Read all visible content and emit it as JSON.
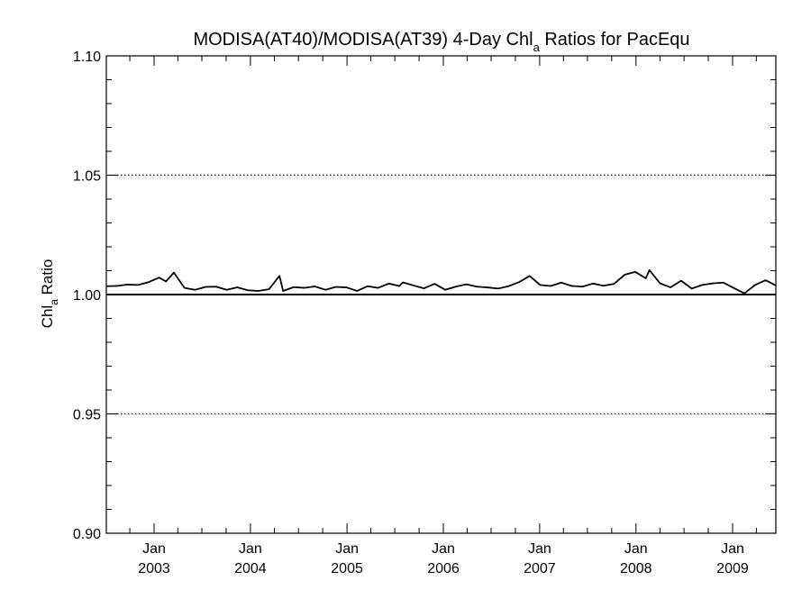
{
  "chart_data": {
    "type": "line",
    "title": {
      "main": "MODISA(AT40)/MODISA(AT39) 4-Day Chl",
      "sub": "a",
      "rest": " Ratios for PacEqu"
    },
    "ylabel": {
      "main": "Chl",
      "sub": "a",
      "rest": " Ratio"
    },
    "xlim": [
      "2002-07-04",
      "2009-06-14"
    ],
    "ylim": [
      0.9,
      1.1
    ],
    "y_ticks": [
      "0.90",
      "0.95",
      "1.00",
      "1.05",
      "1.10"
    ],
    "x_ticks": [
      {
        "month": "Jan",
        "year": "2003",
        "date": "2003-01-01"
      },
      {
        "month": "Jan",
        "year": "2004",
        "date": "2004-01-01"
      },
      {
        "month": "Jan",
        "year": "2005",
        "date": "2005-01-01"
      },
      {
        "month": "Jan",
        "year": "2006",
        "date": "2006-01-01"
      },
      {
        "month": "Jan",
        "year": "2007",
        "date": "2007-01-01"
      },
      {
        "month": "Jan",
        "year": "2008",
        "date": "2008-01-01"
      },
      {
        "month": "Jan",
        "year": "2009",
        "date": "2009-01-01"
      }
    ],
    "grid": "dotted horizontal at major y ticks",
    "reference_line": 1.0,
    "series": [
      {
        "values": [
          [
            "2002-07-04",
            1.0035
          ],
          [
            "2002-08-13",
            1.0036
          ],
          [
            "2002-09-22",
            1.0042
          ],
          [
            "2002-11-01",
            1.004
          ],
          [
            "2002-12-11",
            1.0052
          ],
          [
            "2003-01-20",
            1.0071
          ],
          [
            "2003-02-15",
            1.0055
          ],
          [
            "2003-03-17",
            1.0092
          ],
          [
            "2003-04-26",
            1.0028
          ],
          [
            "2003-06-05",
            1.002
          ],
          [
            "2003-07-15",
            1.0032
          ],
          [
            "2003-08-24",
            1.0033
          ],
          [
            "2003-10-03",
            1.002
          ],
          [
            "2003-11-12",
            1.003
          ],
          [
            "2003-12-22",
            1.0018
          ],
          [
            "2004-01-31",
            1.0015
          ],
          [
            "2004-03-11",
            1.0022
          ],
          [
            "2004-04-20",
            1.0078
          ],
          [
            "2004-05-04",
            1.0015
          ],
          [
            "2004-06-13",
            1.0031
          ],
          [
            "2004-07-23",
            1.0028
          ],
          [
            "2004-09-01",
            1.0034
          ],
          [
            "2004-10-11",
            1.002
          ],
          [
            "2004-11-20",
            1.0032
          ],
          [
            "2004-12-30",
            1.003
          ],
          [
            "2005-02-08",
            1.0015
          ],
          [
            "2005-03-20",
            1.0035
          ],
          [
            "2005-04-29",
            1.0028
          ],
          [
            "2005-06-08",
            1.0046
          ],
          [
            "2005-07-18",
            1.0036
          ],
          [
            "2005-08-01",
            1.0051
          ],
          [
            "2005-09-10",
            1.0038
          ],
          [
            "2005-10-20",
            1.0026
          ],
          [
            "2005-11-29",
            1.0045
          ],
          [
            "2006-01-08",
            1.002
          ],
          [
            "2006-02-17",
            1.0033
          ],
          [
            "2006-03-29",
            1.0043
          ],
          [
            "2006-05-08",
            1.0033
          ],
          [
            "2006-06-17",
            1.003
          ],
          [
            "2006-07-27",
            1.0025
          ],
          [
            "2006-09-05",
            1.0035
          ],
          [
            "2006-10-15",
            1.0052
          ],
          [
            "2006-11-24",
            1.0078
          ],
          [
            "2007-01-03",
            1.004
          ],
          [
            "2007-02-12",
            1.0036
          ],
          [
            "2007-03-24",
            1.005
          ],
          [
            "2007-05-03",
            1.0036
          ],
          [
            "2007-06-12",
            1.0033
          ],
          [
            "2007-07-22",
            1.0046
          ],
          [
            "2007-08-31",
            1.0037
          ],
          [
            "2007-10-10",
            1.0045
          ],
          [
            "2007-11-19",
            1.0083
          ],
          [
            "2007-12-29",
            1.0095
          ],
          [
            "2008-02-07",
            1.0068
          ],
          [
            "2008-02-21",
            1.0102
          ],
          [
            "2008-04-01",
            1.0047
          ],
          [
            "2008-05-11",
            1.003
          ],
          [
            "2008-06-20",
            1.0058
          ],
          [
            "2008-07-30",
            1.0025
          ],
          [
            "2008-09-08",
            1.004
          ],
          [
            "2008-10-18",
            1.0047
          ],
          [
            "2008-11-27",
            1.005
          ],
          [
            "2009-01-06",
            1.0027
          ],
          [
            "2009-02-15",
            1.0005
          ],
          [
            "2009-03-27",
            1.004
          ],
          [
            "2009-05-06",
            1.006
          ],
          [
            "2009-06-14",
            1.0038
          ]
        ]
      }
    ]
  }
}
